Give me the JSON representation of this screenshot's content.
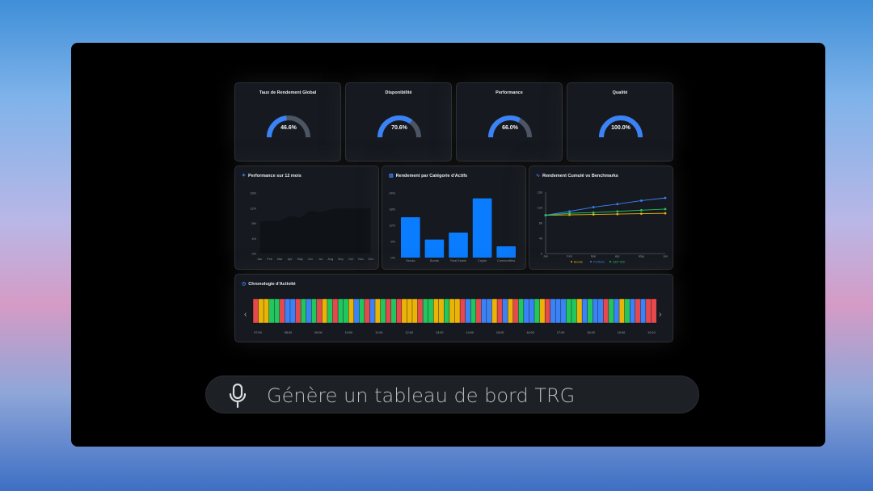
{
  "kpis": [
    {
      "title": "Taux de Rendement Global",
      "value": 46.6,
      "label": "46.6%"
    },
    {
      "title": "Disponibilité",
      "value": 70.6,
      "label": "70.6%"
    },
    {
      "title": "Performance",
      "value": 66.0,
      "label": "66.0%"
    },
    {
      "title": "Qualité",
      "value": 100.0,
      "label": "100.0%"
    }
  ],
  "colors": {
    "accent": "#3b82f6",
    "track": "#4b5563",
    "bar": "#0a7cff",
    "red": "#e5484d",
    "yellow": "#eab308",
    "green": "#22c55e",
    "blue": "#3b82f6",
    "bonds": "#eab308",
    "portfolio": "#3b82f6",
    "sp500": "#22c55e"
  },
  "chart_data": [
    {
      "type": "area",
      "title": "Performance sur 12 mois",
      "icon": "sparkle-icon",
      "categories": [
        "Jan",
        "Feb",
        "Mar",
        "Apr",
        "May",
        "Jun",
        "Jul",
        "Aug",
        "Sep",
        "Oct",
        "Nov",
        "Dec"
      ],
      "values": [
        8.6,
        8.8,
        8.8,
        10.1,
        9.6,
        11.4,
        11.0,
        11.8,
        12.1,
        12.1,
        12.0,
        12.3
      ],
      "yticks": [
        "0%",
        "4%",
        "8%",
        "12%",
        "16%"
      ],
      "ylim": [
        0,
        16
      ],
      "grid": false
    },
    {
      "type": "bar",
      "title": "Rendement par Catégorie d'Actifs",
      "icon": "chart-icon",
      "categories": [
        "Stocks",
        "Bonds",
        "Real Estate",
        "Crypto",
        "Commodities"
      ],
      "values": [
        15,
        6.7,
        9.3,
        22,
        4.2
      ],
      "yticks": [
        "0%",
        "6%",
        "12%",
        "18%",
        "24%"
      ],
      "ylim": [
        0,
        24
      ],
      "grid": false
    },
    {
      "type": "line",
      "title": "Rendement Cumulé vs Benchmarks",
      "icon": "activity-icon",
      "categories": [
        "Jan",
        "Feb",
        "Mar",
        "Apr",
        "May",
        "Jun"
      ],
      "series": [
        {
          "name": "Bonds",
          "values": [
            100,
            101,
            102,
            103,
            104,
            105
          ]
        },
        {
          "name": "Portfolio",
          "values": [
            100,
            110,
            121,
            129,
            138,
            145
          ]
        },
        {
          "name": "S&P 500",
          "values": [
            100,
            105,
            107,
            110,
            113,
            116
          ]
        }
      ],
      "yticks": [
        "0",
        "40",
        "80",
        "120",
        "160"
      ],
      "ylim": [
        0,
        160
      ],
      "legend": "bottom",
      "grid": false
    }
  ],
  "timeline": {
    "title": "Chronologie d'Activité",
    "icon": "clock-icon",
    "segments": "RYYGGRBBRGBGRYGRGGYBGRBYGRGRYYYRGGYYGYYRBGRBBYRBYRGBBGYRBBBGGYBGBBRGBYGBRBRR",
    "times": [
      "07:00",
      "08:00",
      "09:00",
      "10:00",
      "11:00",
      "12:00",
      "13:00",
      "14:00",
      "15:00",
      "16:00",
      "17:00",
      "18:00",
      "19:00",
      "19:10"
    ]
  },
  "prompt": {
    "text": "Génère un tableau de bord TRG",
    "icon": "microphone-icon"
  }
}
